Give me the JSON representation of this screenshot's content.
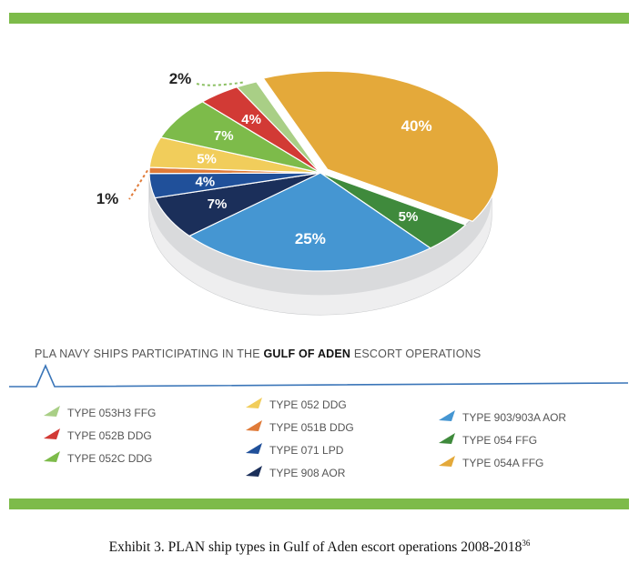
{
  "chart_data": {
    "type": "pie",
    "title_parts": {
      "before": "PLA NAVY SHIPS PARTICIPATING IN THE ",
      "bold": "GULF OF ADEN",
      "after": " ESCORT OPERATIONS"
    },
    "slices": [
      {
        "label": "TYPE 054A FFG",
        "value": 40,
        "text": "40%",
        "color": "#e4a93a"
      },
      {
        "label": "TYPE 054 FFG",
        "value": 5,
        "text": "5%",
        "color": "#3f8a3c"
      },
      {
        "label": "TYPE 903/903A AOR",
        "value": 25,
        "text": "25%",
        "color": "#4596d2"
      },
      {
        "label": "TYPE 908 AOR",
        "value": 7,
        "text": "7%",
        "color": "#1b2f5a"
      },
      {
        "label": "TYPE 071 LPD",
        "value": 4,
        "text": "4%",
        "color": "#20509a"
      },
      {
        "label": "TYPE 051B DDG",
        "value": 1,
        "text": "1%",
        "color": "#e07b39"
      },
      {
        "label": "TYPE 052 DDG",
        "value": 5,
        "text": "5%",
        "color": "#f1cd5b"
      },
      {
        "label": "TYPE 052C DDG",
        "value": 7,
        "text": "7%",
        "color": "#7dbb4a"
      },
      {
        "label": "TYPE 052B DDG",
        "value": 4,
        "text": "4%",
        "color": "#d23a35"
      },
      {
        "label": "TYPE 053H3 FFG",
        "value": 2,
        "text": "2%",
        "color": "#a9cf86"
      }
    ],
    "legend": {
      "col1": [
        "TYPE 053H3 FFG",
        "TYPE 052B DDG",
        "TYPE 052C DDG"
      ],
      "col2": [
        "TYPE 052 DDG",
        "TYPE 051B DDG",
        "TYPE 071 LPD",
        "TYPE 908 AOR"
      ],
      "col3": [
        "TYPE 903/903A AOR",
        "TYPE 054 FFG",
        "TYPE 054A FFG"
      ]
    }
  },
  "legend_colors": {
    "TYPE 053H3 FFG": "#a9cf86",
    "TYPE 052B DDG": "#d23a35",
    "TYPE 052C DDG": "#7dbb4a",
    "TYPE 052 DDG": "#f1cd5b",
    "TYPE 051B DDG": "#e07b39",
    "TYPE 071 LPD": "#20509a",
    "TYPE 908 AOR": "#1b2f5a",
    "TYPE 903/903A AOR": "#4596d2",
    "TYPE 054 FFG": "#3f8a3c",
    "TYPE 054A FFG": "#e4a93a"
  },
  "caption": {
    "text": "Exhibit 3. PLAN ship types in Gulf of Aden escort operations 2008-2018",
    "footnote": "36"
  }
}
